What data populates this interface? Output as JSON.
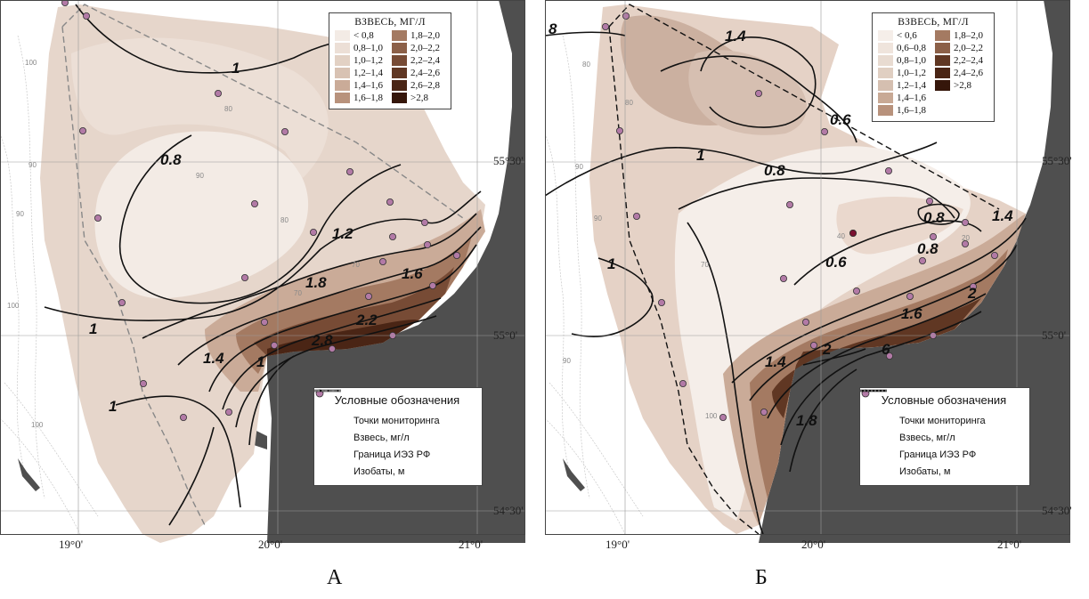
{
  "colors": {
    "c_lt_0_8": "#f3ebe5",
    "c_0_8_1_0": "#ecdfd6",
    "c_1_0_1_2": "#e2d1c4",
    "c_1_2_1_4": "#d8c2b3",
    "c_1_4_1_6": "#caab98",
    "c_1_6_1_8": "#b8927c",
    "c_1_8_2_0": "#a47a62",
    "c_2_0_2_2": "#8c6048",
    "c_2_2_2_4": "#774b35",
    "c_2_4_2_6": "#603723",
    "c_2_6_2_8": "#4a2515",
    "c_gt_2_8": "#35160a",
    "land": "#4f4f4f",
    "point": "#b27aa6"
  },
  "map_a": {
    "caption": "А",
    "legend": {
      "title": "ВЗВЕСЬ, МГ/Л",
      "items": [
        {
          "label": "< 0,8",
          "color": "#f3ebe5"
        },
        {
          "label": "1,8–2,0",
          "color": "#a47a62"
        },
        {
          "label": "0,8–1,0",
          "color": "#ecdfd6"
        },
        {
          "label": "2,0–2,2",
          "color": "#8c6048"
        },
        {
          "label": "1,0–1,2",
          "color": "#e2d1c4"
        },
        {
          "label": "2,2–2,4",
          "color": "#774b35"
        },
        {
          "label": "1,2–1,4",
          "color": "#d8c2b3"
        },
        {
          "label": "2,4–2,6",
          "color": "#603723"
        },
        {
          "label": "1,4–1,6",
          "color": "#caab98"
        },
        {
          "label": "2,6–2,8",
          "color": "#4a2515"
        },
        {
          "label": "1,6–1,8",
          "color": "#b8927c"
        },
        {
          "label": ">2,8",
          "color": "#35160a"
        }
      ]
    },
    "symbols": {
      "title": "Условные обозначения",
      "points": "Точки мониторинга",
      "suspension": "Взвесь, мг/л",
      "boundary": "Граница ИЭЗ РФ",
      "isobaths": "Изобаты, м"
    },
    "contour_labels": [
      "1",
      "0.8",
      "1.2",
      "1.6",
      "1.8",
      "2.2",
      "2.8",
      "1.4",
      "1",
      "1",
      "1"
    ],
    "isobath_labels": [
      "100",
      "90",
      "90",
      "80",
      "90",
      "100",
      "80",
      "70",
      "70",
      "100"
    ],
    "lon_ticks": [
      "19°0'",
      "20°0'",
      "21°0'"
    ],
    "lat_ticks": [
      "55°30'",
      "55°0'",
      "54°30'"
    ]
  },
  "map_b": {
    "caption": "Б",
    "legend": {
      "title": "ВЗВЕСЬ, МГ/Л",
      "items": [
        {
          "label": "< 0,6",
          "color": "#f5eee9"
        },
        {
          "label": "1,8–2,0",
          "color": "#a47a62"
        },
        {
          "label": "0,6–0,8",
          "color": "#efe4dc"
        },
        {
          "label": "2,0–2,2",
          "color": "#8c6048"
        },
        {
          "label": "0,8–1,0",
          "color": "#e8dbd1"
        },
        {
          "label": "2,2–2,4",
          "color": "#603723"
        },
        {
          "label": "1,0–1,2",
          "color": "#e0cfc2"
        },
        {
          "label": "2,4–2,6",
          "color": "#4a2515"
        },
        {
          "label": "1,2–1,4",
          "color": "#d5bfb0"
        },
        {
          "label": ">2,8",
          "color": "#35160a"
        },
        {
          "label": "1,4–1,6",
          "color": "#c8a995"
        },
        {
          "label": "",
          "color": ""
        },
        {
          "label": "1,6–1,8",
          "color": "#b8927c"
        },
        {
          "label": "",
          "color": ""
        }
      ]
    },
    "symbols": {
      "title": "Условные обозначения",
      "points": "Точки мониторинга",
      "suspension": "Взвесь, мг/л",
      "boundary": "Граница ИЭЗ РФ",
      "isobaths": "Изобаты, м"
    },
    "contour_labels": [
      "8",
      "1.4",
      "0.6",
      "1",
      "0.8",
      "0.8",
      "0.8",
      "0.6",
      "1.4",
      "2",
      "1.6",
      "2",
      "6",
      "1.4",
      "1.8",
      "1"
    ],
    "isobath_labels": [
      "80",
      "90",
      "80",
      "90",
      "70",
      "100",
      "40",
      "20",
      "90"
    ],
    "lon_ticks": [
      "19°0'",
      "20°0'",
      "21°0'"
    ],
    "lat_ticks": [
      "55°30'",
      "55°0'",
      "54°30'"
    ]
  }
}
